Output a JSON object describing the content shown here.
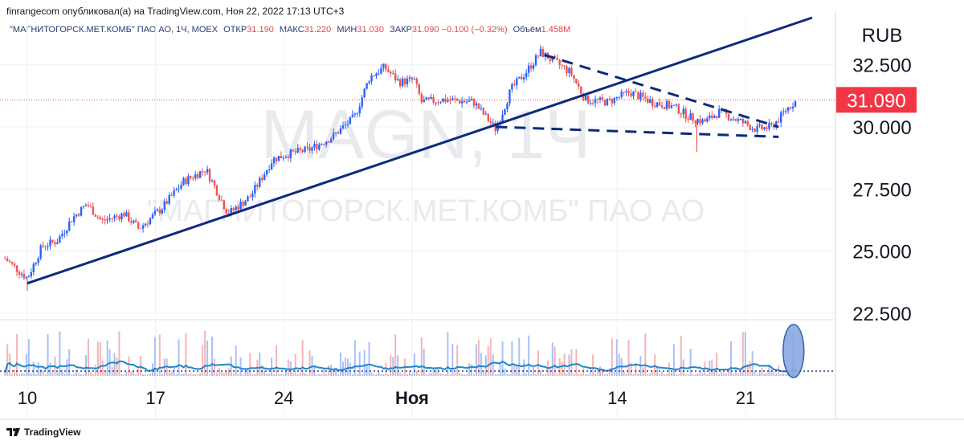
{
  "header": {
    "published_text": "finrangecom опубликовал(а) на TradingView.com, Ноя 22, 2022 17:13 UTC+3"
  },
  "legend": {
    "symbol": "\"МАГНИТОГОРСК.МЕТ.КОМБ\" ПАО АО, 1Ч, MOEX",
    "open_label": "ОТКР",
    "open_value": "31.190",
    "high_label": "МАКС",
    "high_value": "31.220",
    "low_label": "МИН",
    "low_value": "31.030",
    "close_label": "ЗАКР",
    "close_value": "31.090",
    "change": "−0.100 (−0.32%)",
    "volume_label": "Объём",
    "volume_value": "1.458M"
  },
  "watermark": {
    "ticker": "MAGN, 1Ч",
    "name": "\"МАГНИТОГОРСК.МЕТ.КОМБ\" ПАО АО"
  },
  "footer": {
    "brand": "TradingView"
  },
  "colors": {
    "up": "#2962ff",
    "down": "#ef5350",
    "trendline": "#0d2a7e",
    "price_label_bg": "#f23645",
    "volume_ma": "#1e88c8"
  },
  "chart_data": {
    "type": "candlestick",
    "currency": "RUB",
    "y_ticks": [
      22.5,
      25.0,
      27.5,
      30.0,
      32.5
    ],
    "y_tick_labels": [
      "22.500",
      "25.000",
      "27.500",
      "30.000",
      "32.500"
    ],
    "ylim": [
      22.3,
      34.4
    ],
    "x_ticks": [
      {
        "label": "10",
        "pos": 0.0
      },
      {
        "label": "17",
        "pos": 0.1724
      },
      {
        "label": "24",
        "pos": 0.3448
      },
      {
        "label": "Ноя",
        "pos": 0.5172
      },
      {
        "label": "14",
        "pos": 0.7931
      },
      {
        "label": "21",
        "pos": 0.9655
      }
    ],
    "x_domain": [
      0,
      1.058
    ],
    "last_price": 31.09,
    "last_price_label": "31.090",
    "price_path": [
      [
        -0.03,
        24.7
      ],
      [
        0.0,
        23.9
      ],
      [
        0.02,
        25.2
      ],
      [
        0.04,
        25.4
      ],
      [
        0.06,
        26.3
      ],
      [
        0.08,
        26.9
      ],
      [
        0.1,
        26.2
      ],
      [
        0.13,
        26.5
      ],
      [
        0.15,
        25.9
      ],
      [
        0.18,
        26.7
      ],
      [
        0.21,
        27.8
      ],
      [
        0.24,
        28.3
      ],
      [
        0.27,
        26.5
      ],
      [
        0.3,
        27.2
      ],
      [
        0.33,
        28.7
      ],
      [
        0.35,
        28.9
      ],
      [
        0.38,
        29.1
      ],
      [
        0.41,
        29.6
      ],
      [
        0.44,
        30.4
      ],
      [
        0.46,
        32.0
      ],
      [
        0.48,
        32.4
      ],
      [
        0.5,
        31.8
      ],
      [
        0.52,
        31.9
      ],
      [
        0.53,
        31.0
      ],
      [
        0.56,
        31.1
      ],
      [
        0.6,
        31.0
      ],
      [
        0.63,
        29.9
      ],
      [
        0.65,
        31.5
      ],
      [
        0.67,
        32.2
      ],
      [
        0.69,
        33.0
      ],
      [
        0.71,
        32.6
      ],
      [
        0.73,
        32.2
      ],
      [
        0.75,
        31.1
      ],
      [
        0.78,
        31.0
      ],
      [
        0.81,
        31.4
      ],
      [
        0.84,
        31.0
      ],
      [
        0.87,
        30.8
      ],
      [
        0.89,
        30.4
      ],
      [
        0.91,
        30.2
      ],
      [
        0.93,
        30.6
      ],
      [
        0.96,
        30.2
      ],
      [
        0.98,
        29.9
      ],
      [
        1.0,
        30.0
      ],
      [
        1.01,
        30.3
      ],
      [
        1.02,
        30.7
      ],
      [
        1.035,
        31.1
      ]
    ],
    "wicks": [
      {
        "x": 0.0,
        "low": 23.4
      },
      {
        "x": 0.9,
        "low": 29.0
      },
      {
        "x": 0.69,
        "high": 33.2
      }
    ],
    "trendlines": [
      {
        "style": "solid",
        "from": [
          0.0,
          23.7
        ],
        "to": [
          1.055,
          34.4
        ]
      },
      {
        "style": "dashed",
        "from": [
          0.695,
          32.9
        ],
        "to": [
          1.01,
          30.0
        ]
      },
      {
        "style": "dashed",
        "from": [
          0.63,
          30.0
        ],
        "to": [
          1.01,
          29.6
        ]
      }
    ],
    "volume_highlight_x": 1.03
  }
}
